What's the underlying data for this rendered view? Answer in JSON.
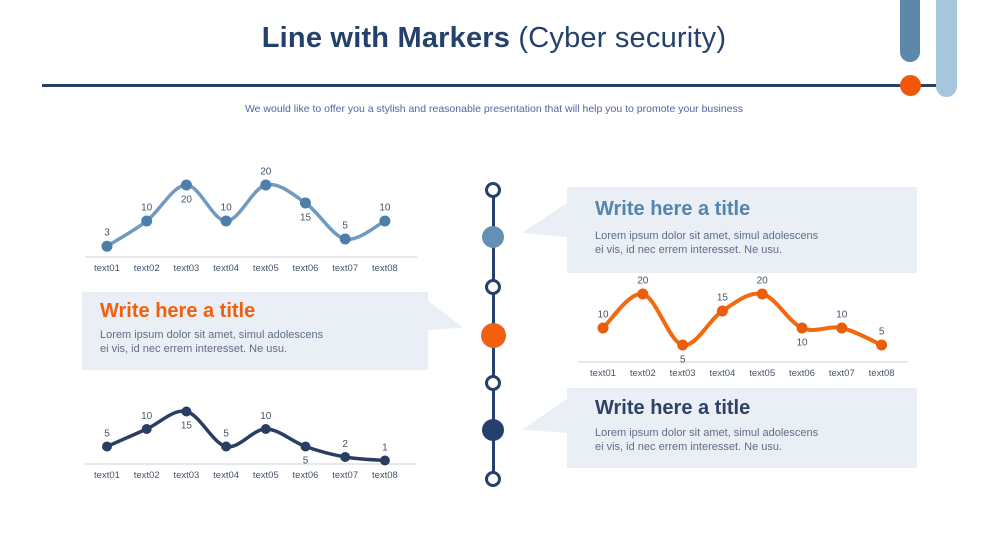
{
  "header": {
    "title_bold": "Line with Markers",
    "title_rest": " (Cyber security)",
    "subtitle": "We would like to offer you a stylish and reasonable presentation that will help you to promote your business"
  },
  "colors": {
    "navy": "#24406b",
    "steel_blue": "#6590b5",
    "light_blue": "#a5c6dd",
    "orange": "#f0600f",
    "divider": "#2a3f63",
    "callout_bg": "#eaeff5",
    "body_text": "#5d6e87",
    "data_label": "#44546a",
    "axis_line": "#d9d9d9"
  },
  "callouts": [
    {
      "position": "left",
      "accent": "orange",
      "title": "Write here a title",
      "body_lines": [
        "Lorem ipsum dolor sit amet, simul adolescens",
        "ei vis, id nec errem interesset. Ne usu."
      ]
    },
    {
      "position": "top-right",
      "accent": "steel_blue",
      "title": "Write here a title",
      "body_lines": [
        "Lorem ipsum dolor sit amet, simul adolescens",
        "ei vis, id nec errem interesset. Ne usu."
      ]
    },
    {
      "position": "bottom-right",
      "accent": "navy",
      "title": "Write here a title",
      "body_lines": [
        "Lorem ipsum dolor sit amet, simul adolescens",
        "ei vis, id nec errem interesset. Ne usu."
      ]
    }
  ],
  "timeline": {
    "nodes": [
      {
        "type": "hollow"
      },
      {
        "type": "filled",
        "color_name": "steel_blue"
      },
      {
        "type": "hollow"
      },
      {
        "type": "filled",
        "color_name": "orange"
      },
      {
        "type": "hollow"
      },
      {
        "type": "filled",
        "color_name": "navy"
      },
      {
        "type": "hollow"
      }
    ]
  },
  "chart_data": [
    {
      "type": "line",
      "name": "blue-line-chart-top-left",
      "title": "",
      "xlabel": "",
      "ylabel": "",
      "categories": [
        "text01",
        "text02",
        "text03",
        "text04",
        "text05",
        "text06",
        "text07",
        "text08"
      ],
      "values": [
        3,
        10,
        20,
        10,
        20,
        15,
        5,
        10
      ],
      "label_side": [
        "above",
        "above",
        "below",
        "above",
        "above",
        "below",
        "above",
        "above"
      ],
      "line_color": "#6f9ac1",
      "marker_color": "#4d7fab",
      "markers": true,
      "smooth": true,
      "data_labels": true,
      "grid": false,
      "legend": "none",
      "ylim": [
        0,
        24
      ]
    },
    {
      "type": "line",
      "name": "navy-line-chart-bottom-left",
      "title": "",
      "xlabel": "",
      "ylabel": "",
      "categories": [
        "text01",
        "text02",
        "text03",
        "text04",
        "text05",
        "text06",
        "text07",
        "text08"
      ],
      "values": [
        5,
        10,
        15,
        5,
        10,
        5,
        2,
        1
      ],
      "label_side": [
        "above",
        "above",
        "below",
        "above",
        "above",
        "below",
        "above",
        "above"
      ],
      "line_color": "#2a3e63",
      "marker_color": "#2a3e63",
      "markers": true,
      "smooth": true,
      "data_labels": true,
      "grid": false,
      "legend": "none",
      "ylim": [
        0,
        18
      ]
    },
    {
      "type": "line",
      "name": "orange-line-chart-right",
      "title": "",
      "xlabel": "",
      "ylabel": "",
      "categories": [
        "text01",
        "text02",
        "text03",
        "text04",
        "text05",
        "text06",
        "text07",
        "text08"
      ],
      "values": [
        10,
        20,
        5,
        15,
        20,
        10,
        10,
        5
      ],
      "label_side": [
        "above",
        "above",
        "below",
        "above",
        "above",
        "below",
        "above",
        "above"
      ],
      "line_color": "#f2690f",
      "marker_color": "#ea5e0b",
      "markers": true,
      "smooth": true,
      "data_labels": true,
      "grid": false,
      "legend": "none",
      "ylim": [
        0,
        24
      ]
    }
  ]
}
